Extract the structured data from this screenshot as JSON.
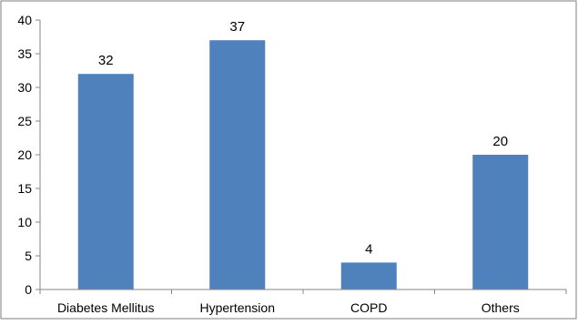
{
  "chart_data": {
    "type": "bar",
    "title": "",
    "xlabel": "",
    "ylabel": "",
    "categories": [
      "Diabetes Mellitus",
      "Hypertension",
      "COPD",
      "Others"
    ],
    "values": [
      32,
      37,
      4,
      20
    ],
    "data_labels": [
      "32",
      "37",
      "4",
      "20"
    ],
    "ylim": [
      0,
      40
    ],
    "yticks": [
      0,
      5,
      10,
      15,
      20,
      25,
      30,
      35,
      40
    ],
    "ytick_labels": [
      "0",
      "5",
      "10",
      "15",
      "20",
      "25",
      "30",
      "35",
      "40"
    ],
    "grid": false,
    "legend": "none",
    "bar_color": "#4f81bd",
    "axis_color": "#868686",
    "frame_color": "#7f7f7f"
  }
}
